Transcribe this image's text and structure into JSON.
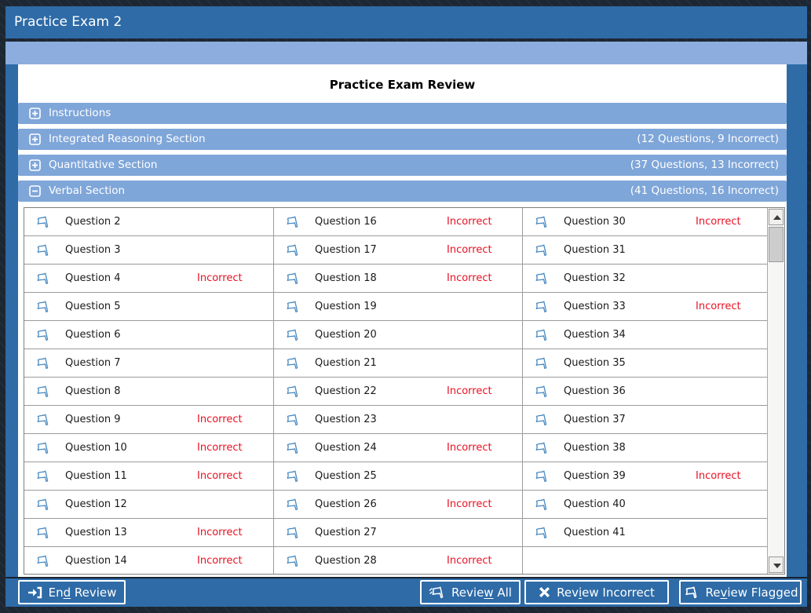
{
  "window": {
    "title": "Practice Exam 2"
  },
  "page_title": "Practice Exam Review",
  "colors": {
    "window_blue": "#2e6ba7",
    "header_blue": "#7fa6d9",
    "subbar_blue": "#8cadde",
    "incorrect_red": "#e81123",
    "flag_blue": "#4a8ac2",
    "panel_white": "#ffffff",
    "grid_gray": "#9b9b9b"
  },
  "status_labels": {
    "incorrect": "Incorrect"
  },
  "sections": [
    {
      "label": "Instructions",
      "count": "",
      "state": "collapsed"
    },
    {
      "label": "Integrated Reasoning Section",
      "count": "(12 Questions, 9 Incorrect)",
      "state": "collapsed"
    },
    {
      "label": "Quantitative Section",
      "count": "(37 Questions, 13 Incorrect)",
      "state": "collapsed"
    },
    {
      "label": "Verbal Section",
      "count": "(41 Questions, 16 Incorrect)",
      "state": "expanded"
    }
  ],
  "questions": {
    "columns": [
      [
        {
          "label": "Question 2",
          "status": ""
        },
        {
          "label": "Question 3",
          "status": ""
        },
        {
          "label": "Question 4",
          "status": "Incorrect"
        },
        {
          "label": "Question 5",
          "status": ""
        },
        {
          "label": "Question 6",
          "status": ""
        },
        {
          "label": "Question 7",
          "status": ""
        },
        {
          "label": "Question 8",
          "status": ""
        },
        {
          "label": "Question 9",
          "status": "Incorrect"
        },
        {
          "label": "Question 10",
          "status": "Incorrect"
        },
        {
          "label": "Question 11",
          "status": "Incorrect"
        },
        {
          "label": "Question 12",
          "status": ""
        },
        {
          "label": "Question 13",
          "status": "Incorrect"
        },
        {
          "label": "Question 14",
          "status": "Incorrect"
        }
      ],
      [
        {
          "label": "Question 16",
          "status": "Incorrect"
        },
        {
          "label": "Question 17",
          "status": "Incorrect"
        },
        {
          "label": "Question 18",
          "status": "Incorrect"
        },
        {
          "label": "Question 19",
          "status": ""
        },
        {
          "label": "Question 20",
          "status": ""
        },
        {
          "label": "Question 21",
          "status": ""
        },
        {
          "label": "Question 22",
          "status": "Incorrect"
        },
        {
          "label": "Question 23",
          "status": ""
        },
        {
          "label": "Question 24",
          "status": "Incorrect"
        },
        {
          "label": "Question 25",
          "status": ""
        },
        {
          "label": "Question 26",
          "status": "Incorrect"
        },
        {
          "label": "Question 27",
          "status": ""
        },
        {
          "label": "Question 28",
          "status": "Incorrect"
        }
      ],
      [
        {
          "label": "Question 30",
          "status": "Incorrect"
        },
        {
          "label": "Question 31",
          "status": ""
        },
        {
          "label": "Question 32",
          "status": ""
        },
        {
          "label": "Question 33",
          "status": "Incorrect"
        },
        {
          "label": "Question 34",
          "status": ""
        },
        {
          "label": "Question 35",
          "status": ""
        },
        {
          "label": "Question 36",
          "status": ""
        },
        {
          "label": "Question 37",
          "status": ""
        },
        {
          "label": "Question 38",
          "status": ""
        },
        {
          "label": "Question 39",
          "status": "Incorrect"
        },
        {
          "label": "Question 40",
          "status": ""
        },
        {
          "label": "Question 41",
          "status": ""
        },
        {
          "label": "",
          "status": "",
          "empty": true
        }
      ]
    ]
  },
  "toolbar": {
    "end_review": {
      "pre": "En",
      "key": "d",
      "post": " Review"
    },
    "review_all": {
      "pre": "Revie",
      "key": "w",
      "post": " All"
    },
    "review_incorrect": {
      "pre": "Rev",
      "key": "i",
      "post": "ew Incorrect"
    },
    "review_flagged": {
      "pre": "Re",
      "key": "v",
      "post": "iew Flagged"
    }
  }
}
